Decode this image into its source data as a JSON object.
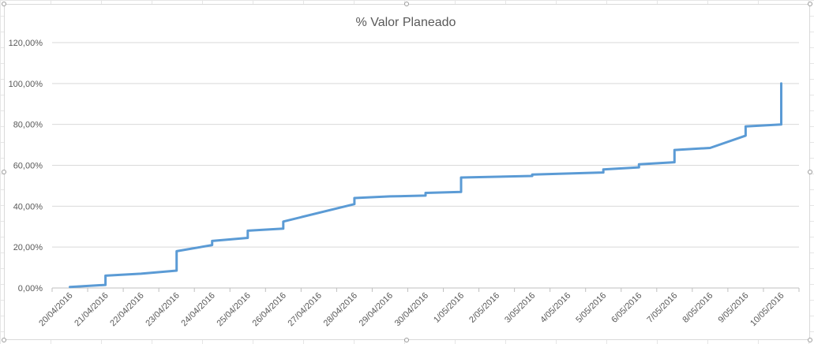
{
  "chart_data": {
    "type": "line",
    "title": "% Valor Planeado",
    "xlabel": "",
    "ylabel": "",
    "ylim": [
      0,
      120
    ],
    "y_ticks": [
      "0,00%",
      "20,00%",
      "40,00%",
      "60,00%",
      "80,00%",
      "100,00%",
      "120,00%"
    ],
    "categories": [
      "20/04/2016",
      "21/04/2016",
      "22/04/2016",
      "23/04/2016",
      "24/04/2016",
      "25/04/2016",
      "26/04/2016",
      "27/04/2016",
      "28/04/2016",
      "29/04/2016",
      "30/04/2016",
      "1/05/2016",
      "2/05/2016",
      "3/05/2016",
      "4/05/2016",
      "5/05/2016",
      "6/05/2016",
      "7/05/2016",
      "8/05/2016",
      "9/05/2016",
      "10/05/2016"
    ],
    "grid": true,
    "line_color": "#5b9bd5",
    "series": [
      {
        "points": [
          [
            0,
            0.5
          ],
          [
            1,
            1.5
          ],
          [
            1,
            6.0
          ],
          [
            2,
            7.0
          ],
          [
            3,
            8.5
          ],
          [
            3,
            18.0
          ],
          [
            4,
            21.0
          ],
          [
            4,
            23.0
          ],
          [
            5,
            24.5
          ],
          [
            5,
            28.0
          ],
          [
            6,
            29.0
          ],
          [
            6,
            32.5
          ],
          [
            8,
            41.0
          ],
          [
            8,
            44.0
          ],
          [
            9,
            44.8
          ],
          [
            10,
            45.2
          ],
          [
            10,
            46.5
          ],
          [
            11,
            47.0
          ],
          [
            11,
            54.0
          ],
          [
            13,
            54.8
          ],
          [
            13,
            55.5
          ],
          [
            15,
            56.5
          ],
          [
            15,
            58.0
          ],
          [
            16,
            59.0
          ],
          [
            16,
            60.5
          ],
          [
            17,
            61.5
          ],
          [
            17,
            67.5
          ],
          [
            18,
            68.5
          ],
          [
            19,
            74.5
          ],
          [
            19,
            79.0
          ],
          [
            20,
            80.0
          ],
          [
            20,
            100.0
          ]
        ]
      }
    ]
  }
}
